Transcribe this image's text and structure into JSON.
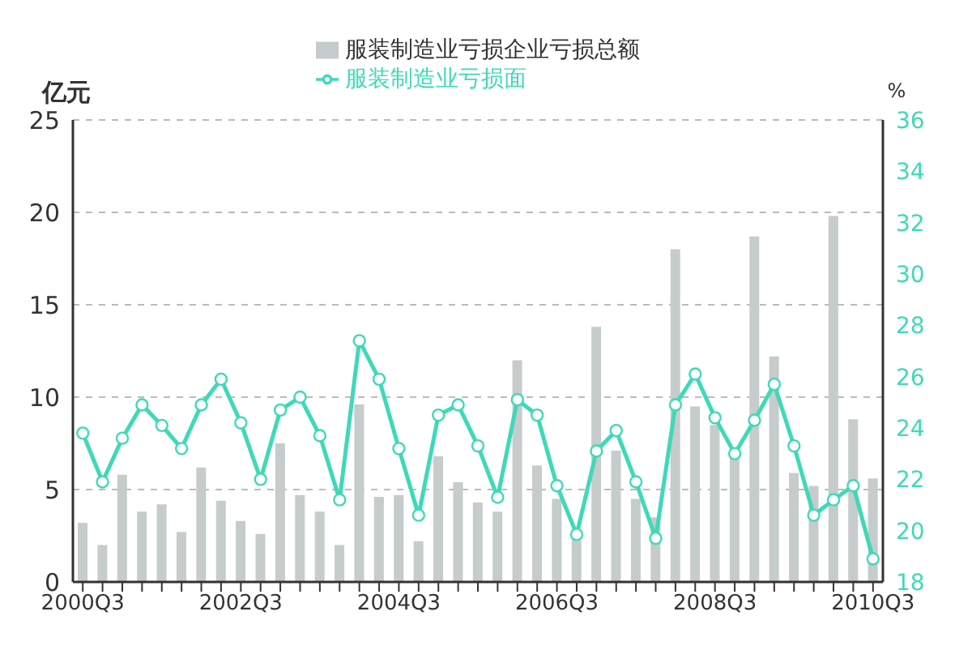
{
  "chart_data": {
    "type": "bar",
    "ylabel": "亿元",
    "y2label": "%",
    "categories": [
      "2000Q3",
      null,
      null,
      null,
      null,
      null,
      null,
      null,
      "2002Q3",
      null,
      null,
      null,
      null,
      null,
      null,
      null,
      "2004Q3",
      null,
      null,
      null,
      null,
      null,
      null,
      null,
      "2006Q3",
      null,
      null,
      null,
      null,
      null,
      null,
      null,
      "2008Q3",
      null,
      null,
      null,
      null,
      null,
      null,
      null,
      "2010Q3"
    ],
    "series": [
      {
        "name": "服装制造业亏损企业亏损总额",
        "color": "#c6cbcb",
        "values": [
          3.2,
          2.0,
          5.8,
          3.8,
          4.2,
          2.7,
          6.2,
          4.4,
          3.3,
          2.6,
          7.5,
          4.7,
          3.8,
          2.0,
          9.6,
          4.6,
          4.7,
          2.2,
          6.8,
          5.4,
          4.3,
          3.8,
          12.0,
          6.3,
          4.5,
          2.8,
          13.8,
          7.1,
          4.5,
          3.5,
          18.0,
          9.5,
          8.5,
          7.2,
          18.7,
          12.2,
          5.9,
          5.2,
          19.8,
          8.8,
          5.6
        ]
      },
      {
        "name": "服装制造业亏损面",
        "type": "line",
        "axis": "y2",
        "color": "#3fd9b8",
        "values": [
          23.8,
          21.9,
          23.6,
          24.9,
          24.1,
          23.2,
          24.9,
          25.9,
          24.2,
          22.0,
          24.7,
          25.2,
          23.7,
          21.2,
          27.4,
          25.9,
          23.2,
          20.6,
          24.5,
          24.9,
          23.3,
          21.3,
          25.1,
          24.5,
          21.75,
          19.85,
          23.1,
          23.9,
          21.9,
          19.7,
          24.9,
          26.1,
          24.4,
          23.0,
          24.3,
          25.7,
          23.3,
          20.6,
          21.2,
          21.75,
          18.9
        ]
      }
    ],
    "ylim": [
      0,
      25
    ],
    "yticks": [
      0,
      5,
      10,
      15,
      20,
      25
    ],
    "y2lim": [
      18,
      36
    ],
    "y2ticks": [
      18,
      20,
      22,
      24,
      26,
      28,
      30,
      32,
      34,
      36
    ],
    "grid": "y",
    "legend": "top",
    "marker": "circle"
  }
}
